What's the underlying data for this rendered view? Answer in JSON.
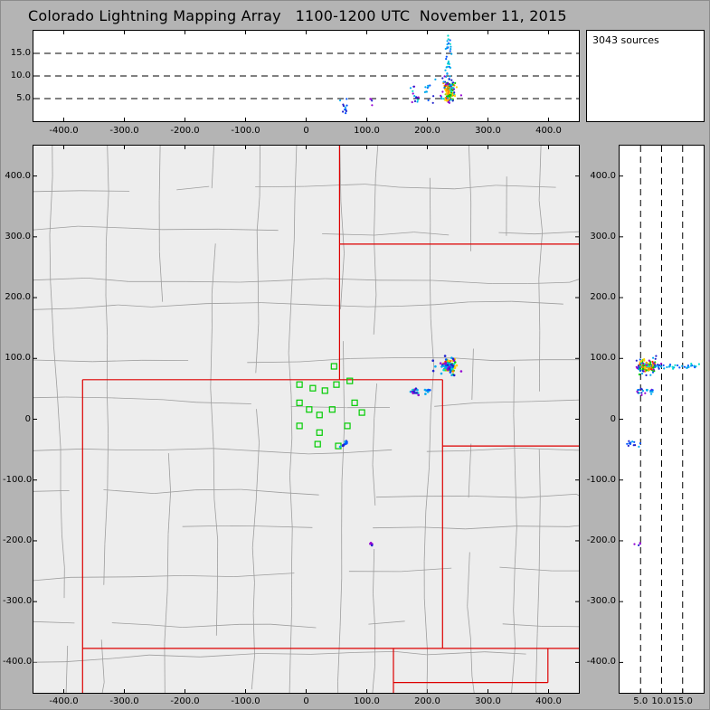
{
  "title": "Colorado Lightning Mapping Array   1100-1200 UTC  November 11, 2015",
  "sources_label": "3043 sources",
  "panels": {
    "top": {
      "y_tick_values": [
        15,
        10,
        5
      ],
      "y_tick_labels": [
        "15.0",
        "10.0",
        "5.0"
      ],
      "x_tick_values": [
        -400,
        -300,
        -200,
        -100,
        0,
        100,
        200,
        300,
        400
      ],
      "x_tick_labels": [
        "-400.0",
        "-300.0",
        "-200.0",
        "-100.0",
        "0",
        "100.0",
        "200.0",
        "300.0",
        "400.0"
      ]
    },
    "map": {
      "y_tick_values": [
        400,
        300,
        200,
        100,
        0,
        -100,
        -200,
        -300,
        -400
      ],
      "y_tick_labels": [
        "400.0",
        "300.0",
        "200.0",
        "100.0",
        "0",
        "-100.0",
        "-200.0",
        "-300.0",
        "-400.0"
      ],
      "x_tick_values": [
        -400,
        -300,
        -200,
        -100,
        0,
        100,
        200,
        300,
        400
      ],
      "x_tick_labels": [
        "-400.0",
        "-300.0",
        "-200.0",
        "-100.0",
        "0",
        "100.0",
        "200.0",
        "300.0",
        "400.0"
      ]
    },
    "right": {
      "x_tick_values": [
        5,
        10,
        15
      ],
      "x_tick_labels": [
        "5.0",
        "10.0",
        "15.0"
      ],
      "y_tick_values": [
        400,
        300,
        200,
        100,
        0,
        -100,
        -200,
        -300,
        -400
      ],
      "y_tick_labels": [
        "400.0",
        "300.0",
        "200.0",
        "100.0",
        "0",
        "-100.0",
        "-200.0",
        "-300.0",
        "-400.0"
      ]
    }
  },
  "chart_data": {
    "type": "scatter",
    "title": "Colorado Lightning Mapping Array 1100-1200 UTC November 11, 2015",
    "total_sources": 3043,
    "x_range_km": [
      -450,
      450
    ],
    "y_range_km": [
      -450,
      450
    ],
    "alt_range_km": [
      0,
      20
    ],
    "alt_gridlines_km": [
      5,
      10,
      15
    ],
    "legend": "points colored by time (rainbow), green squares = LMA stations, red = state borders, gray = county borders",
    "palette": [
      "#9400d3",
      "#2222cc",
      "#0055ff",
      "#00aaee",
      "#00ddcc",
      "#00c800",
      "#88dd00",
      "#ffd000",
      "#ff8800",
      "#ff2200"
    ],
    "colors": {
      "state_border": "#dd0000",
      "county_line": "#9e9e9e",
      "station": "#00cc00",
      "map_bg": "#ededed",
      "grid_dash": "#000000"
    },
    "stations_km": [
      [
        46,
        87
      ],
      [
        -11,
        57
      ],
      [
        11,
        51
      ],
      [
        31,
        47
      ],
      [
        50,
        57
      ],
      [
        72,
        63
      ],
      [
        -11,
        27
      ],
      [
        5,
        16
      ],
      [
        22,
        7
      ],
      [
        43,
        16
      ],
      [
        80,
        27
      ],
      [
        92,
        11
      ],
      [
        -11,
        -11
      ],
      [
        22,
        -22
      ],
      [
        68,
        -11
      ],
      [
        19,
        -41
      ],
      [
        53,
        -44
      ]
    ],
    "state_borders_km": [
      [
        [
          -369,
          65
        ],
        [
          225,
          65
        ]
      ],
      [
        [
          225,
          65
        ],
        [
          225,
          -377
        ]
      ],
      [
        [
          -369,
          -377
        ],
        [
          225,
          -377
        ]
      ],
      [
        [
          -369,
          65
        ],
        [
          -369,
          -450
        ]
      ],
      [
        [
          55,
          450
        ],
        [
          55,
          65
        ]
      ],
      [
        [
          55,
          288
        ],
        [
          450,
          288
        ]
      ],
      [
        [
          225,
          -44
        ],
        [
          450,
          -44
        ]
      ],
      [
        [
          225,
          -377
        ],
        [
          450,
          -377
        ]
      ],
      [
        [
          144,
          -377
        ],
        [
          144,
          -450
        ]
      ],
      [
        [
          144,
          -433
        ],
        [
          399,
          -433
        ]
      ],
      [
        [
          399,
          -377
        ],
        [
          399,
          -433
        ]
      ]
    ],
    "clusters": [
      {
        "name": "storm-core",
        "shape": "gauss",
        "n": 120,
        "x": [
          222,
          252
        ],
        "y": [
          72,
          102
        ],
        "z": [
          4.5,
          8.5
        ],
        "colors": [
          5,
          5,
          6,
          7,
          7,
          8,
          8,
          9,
          9,
          4,
          2
        ]
      },
      {
        "name": "storm-top",
        "shape": "gauss",
        "n": 32,
        "x": [
          226,
          242
        ],
        "y": [
          78,
          94
        ],
        "z": [
          9,
          19
        ],
        "colors": [
          3,
          3,
          4,
          2
        ]
      },
      {
        "name": "storm-halo",
        "shape": "gauss",
        "n": 26,
        "x": [
          202,
          266
        ],
        "y": [
          60,
          112
        ],
        "z": [
          4,
          10
        ],
        "colors": [
          0,
          1,
          0,
          3
        ]
      },
      {
        "name": "cells-west",
        "shape": "gauss",
        "n": 14,
        "x": [
          168,
          190
        ],
        "y": [
          38,
          54
        ],
        "z": [
          4,
          9.5
        ],
        "colors": [
          3,
          4,
          1,
          0
        ]
      },
      {
        "name": "cells-west-2",
        "shape": "gauss",
        "n": 9,
        "x": [
          192,
          208
        ],
        "y": [
          40,
          54
        ],
        "z": [
          4.5,
          8
        ],
        "colors": [
          3,
          2,
          0
        ]
      },
      {
        "name": "flash-near-network",
        "shape": "line",
        "n": 12,
        "x": [
          56,
          71
        ],
        "y": [
          -48,
          -33
        ],
        "z": [
          1.5,
          5
        ],
        "colors": [
          1,
          2,
          2,
          3
        ]
      },
      {
        "name": "specks-south",
        "shape": "gauss",
        "n": 4,
        "x": [
          100,
          114
        ],
        "y": [
          -212,
          -198
        ],
        "z": [
          3,
          6
        ],
        "colors": [
          0,
          1
        ]
      }
    ]
  }
}
